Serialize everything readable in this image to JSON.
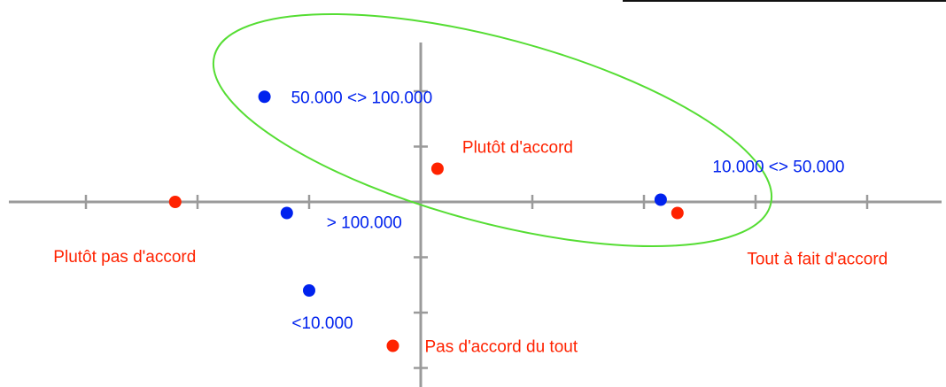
{
  "chart_data": {
    "type": "scatter",
    "title": "",
    "xlabel": "",
    "ylabel": "",
    "xlim": [
      -3.8,
      4.8
    ],
    "ylim": [
      -1.7,
      1.3
    ],
    "grid": false,
    "colors": {
      "modality_a": "#ff2200",
      "modality_b": "#0022ee",
      "ellipse": "#55dd33",
      "axis": "#9a9a9a"
    },
    "series": [
      {
        "color": "#ff2200",
        "points": [
          {
            "x": 0.15,
            "y": 0.3,
            "label": "Plutôt d'accord"
          },
          {
            "x": -2.2,
            "y": 0.0,
            "label": "Plutôt pas d'accord"
          },
          {
            "x": 2.3,
            "y": -0.1,
            "label": "Tout à fait d'accord"
          },
          {
            "x": -0.25,
            "y": -1.3,
            "label": "Pas d'accord du tout"
          }
        ]
      },
      {
        "color": "#0022ee",
        "points": [
          {
            "x": -1.4,
            "y": 0.95,
            "label": "50.000 <> 100.000"
          },
          {
            "x": 2.15,
            "y": 0.02,
            "label": "10.000 <> 50.000"
          },
          {
            "x": -1.2,
            "y": -0.1,
            "label": "> 100.000"
          },
          {
            "x": -1.0,
            "y": -0.8,
            "label": "<10.000"
          }
        ]
      }
    ]
  }
}
